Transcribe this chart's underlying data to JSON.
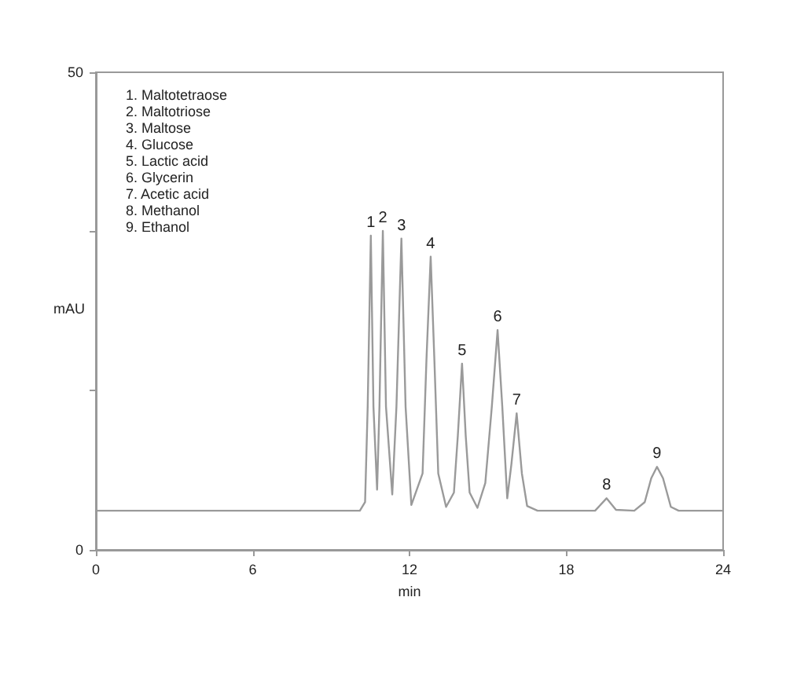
{
  "chart_data": {
    "type": "line",
    "xlabel": "min",
    "ylabel": "mAU",
    "x": [
      0,
      10.1,
      10.3,
      10.4,
      10.52,
      10.62,
      10.76,
      10.85,
      10.98,
      11.1,
      11.34,
      11.5,
      11.69,
      11.85,
      12.07,
      12.5,
      12.65,
      12.81,
      12.95,
      13.1,
      13.4,
      13.7,
      13.85,
      14.01,
      14.15,
      14.3,
      14.6,
      14.9,
      15.15,
      15.37,
      15.55,
      15.74,
      15.9,
      16.1,
      16.3,
      16.5,
      16.9,
      19.1,
      19.54,
      19.9,
      20.6,
      21.0,
      21.25,
      21.47,
      21.7,
      22.0,
      22.3,
      24
    ],
    "series": [
      {
        "color": "#9a9a9a",
        "values": [
          4.1,
          4.1,
          5,
          15,
          32.9,
          15,
          6.3,
          15,
          33.4,
          15,
          5.8,
          15,
          32.6,
          15,
          4.7,
          8,
          20,
          30.7,
          20,
          8,
          4.5,
          6,
          12,
          19.5,
          12,
          6,
          4.4,
          7,
          15,
          23.0,
          15,
          5.4,
          9,
          14.3,
          8,
          4.6,
          4.1,
          4.1,
          5.4,
          4.2,
          4.1,
          5,
          7.5,
          8.7,
          7.5,
          4.5,
          4.1,
          4.1
        ]
      }
    ],
    "xlim": [
      0,
      24
    ],
    "xticks": [
      0,
      6,
      12,
      18,
      24
    ],
    "ylim": [
      0,
      50
    ],
    "yticks": [
      0,
      {
        "value": 16.7,
        "label": null
      },
      {
        "value": 33.3,
        "label": null
      },
      50
    ],
    "grid": false,
    "marker": "none",
    "line_style": "solid",
    "annotations": [
      "1. Maltotetraose\n2. Maltotriose\n3. Maltose\n4. Glucose\n5. Lactic acid\n6. Glycerin\n7. Acetic acid\n8. Methanol\n9. Ethanol",
      {
        "text": "1",
        "x": 10.52,
        "y": 32.9
      },
      {
        "text": "2",
        "x": 10.98,
        "y": 33.4
      },
      {
        "text": "3",
        "x": 11.69,
        "y": 32.6
      },
      {
        "text": "4",
        "x": 12.81,
        "y": 30.7
      },
      {
        "text": "5",
        "x": 14.01,
        "y": 19.5
      },
      {
        "text": "6",
        "x": 15.37,
        "y": 23.0
      },
      {
        "text": "7",
        "x": 16.1,
        "y": 14.3
      },
      {
        "text": "8",
        "x": 19.54,
        "y": 5.4
      },
      {
        "text": "9",
        "x": 21.47,
        "y": 8.7
      }
    ]
  }
}
